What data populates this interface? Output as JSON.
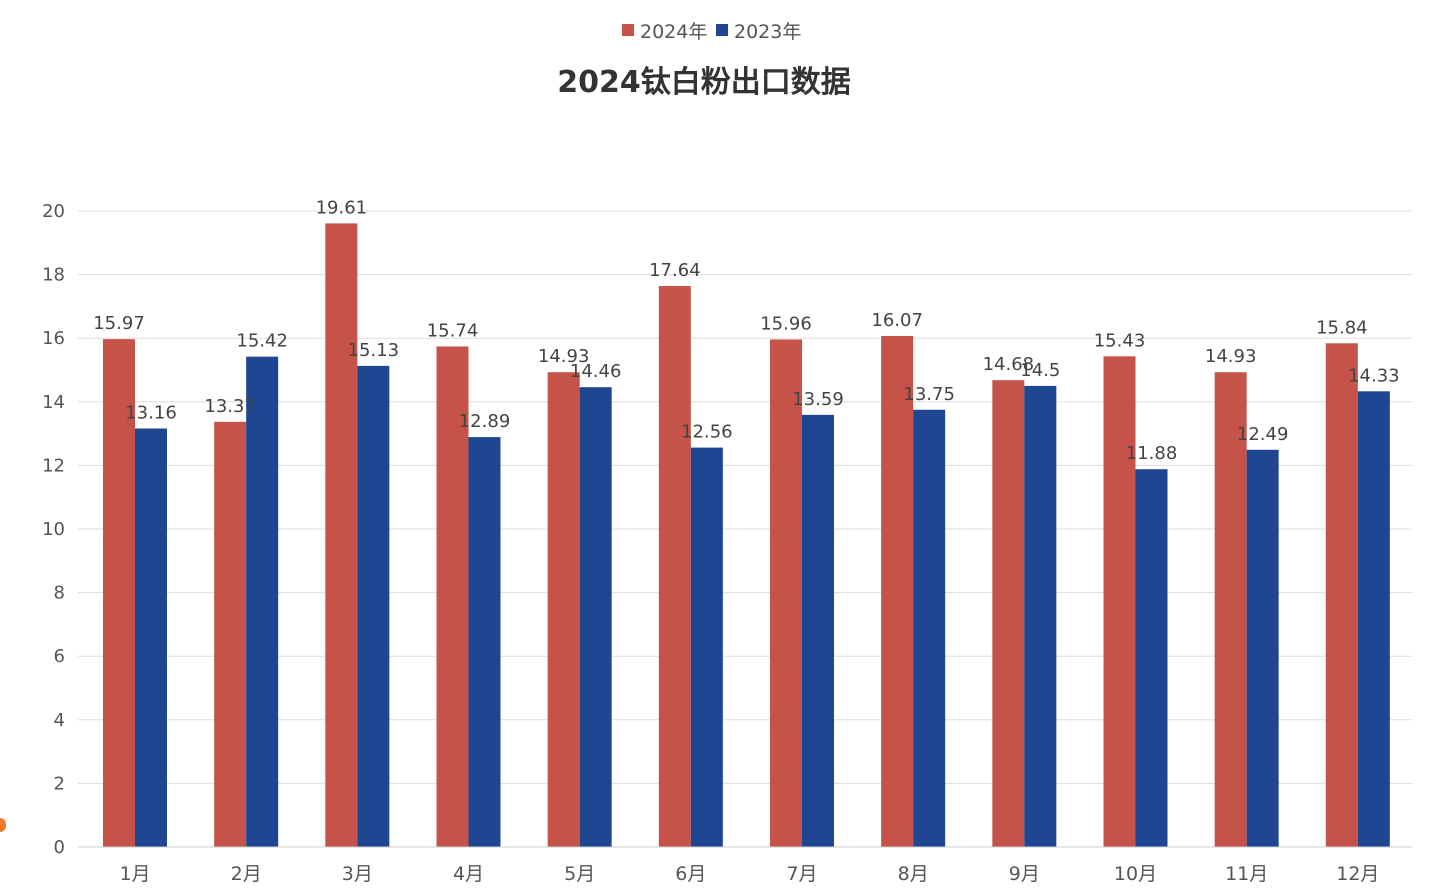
{
  "chart_data": {
    "type": "bar",
    "title": "2024钛白粉出口数据",
    "xlabel": "",
    "ylabel": "",
    "categories": [
      "1月",
      "2月",
      "3月",
      "4月",
      "5月",
      "6月",
      "7月",
      "8月",
      "9月",
      "10月",
      "11月",
      "12月"
    ],
    "series": [
      {
        "name": "2024年",
        "color": "#c6534a",
        "values": [
          15.97,
          13.37,
          19.61,
          15.74,
          14.93,
          17.64,
          15.96,
          16.07,
          14.68,
          15.43,
          14.93,
          15.84
        ]
      },
      {
        "name": "2023年",
        "color": "#1f4690",
        "values": [
          13.16,
          15.42,
          15.13,
          12.89,
          14.46,
          12.56,
          13.59,
          13.75,
          14.5,
          11.88,
          12.49,
          14.33
        ]
      }
    ],
    "ylim": [
      0,
      20
    ],
    "yticks": [
      0,
      2,
      4,
      6,
      8,
      10,
      12,
      14,
      16,
      18,
      20
    ],
    "grid": true,
    "legend_position": "top-center",
    "data_labels": true
  }
}
